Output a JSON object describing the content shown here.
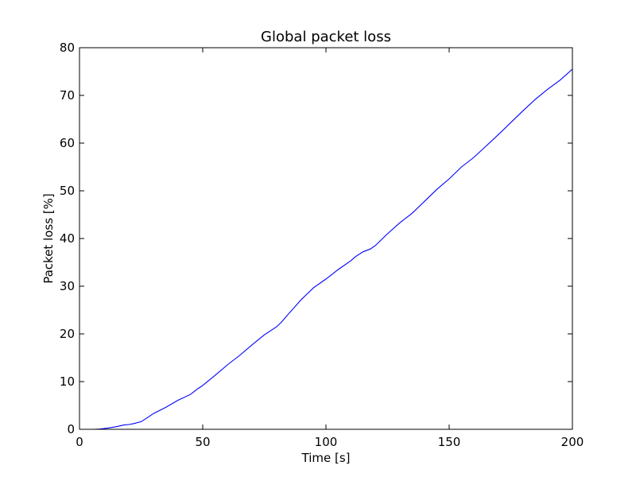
{
  "chart_data": {
    "type": "line",
    "title": "Global packet loss",
    "xlabel": "Time [s]",
    "ylabel": "Packet loss [%]",
    "xlim": [
      0,
      200
    ],
    "ylim": [
      0,
      80
    ],
    "xticks": [
      0,
      50,
      100,
      150,
      200
    ],
    "yticks": [
      0,
      10,
      20,
      30,
      40,
      50,
      60,
      70,
      80
    ],
    "grid": false,
    "legend": "none",
    "series": [
      {
        "color": "#0000ff",
        "x": [
          0,
          6,
          8,
          10,
          12,
          15,
          18,
          20,
          22,
          25,
          28,
          30,
          35,
          40,
          45,
          48,
          50,
          55,
          60,
          65,
          70,
          75,
          80,
          82,
          85,
          90,
          95,
          100,
          105,
          110,
          112,
          115,
          118,
          120,
          125,
          130,
          135,
          140,
          145,
          150,
          155,
          160,
          165,
          170,
          175,
          180,
          185,
          190,
          195,
          200
        ],
        "y": [
          0,
          0,
          0.05,
          0.15,
          0.3,
          0.55,
          0.9,
          1.0,
          1.2,
          1.6,
          2.6,
          3.3,
          4.6,
          6.1,
          7.3,
          8.5,
          9.2,
          11.3,
          13.5,
          15.5,
          17.7,
          19.8,
          21.5,
          22.5,
          24.3,
          27.2,
          29.7,
          31.5,
          33.5,
          35.3,
          36.2,
          37.2,
          37.8,
          38.5,
          41.0,
          43.3,
          45.3,
          47.8,
          50.3,
          52.5,
          55.0,
          57.0,
          59.4,
          61.8,
          64.3,
          66.8,
          69.2,
          71.3,
          73.2,
          75.5
        ]
      },
      {
        "color": "#000000",
        "x": [
          0,
          200
        ],
        "y": [
          0,
          0
        ]
      }
    ]
  }
}
